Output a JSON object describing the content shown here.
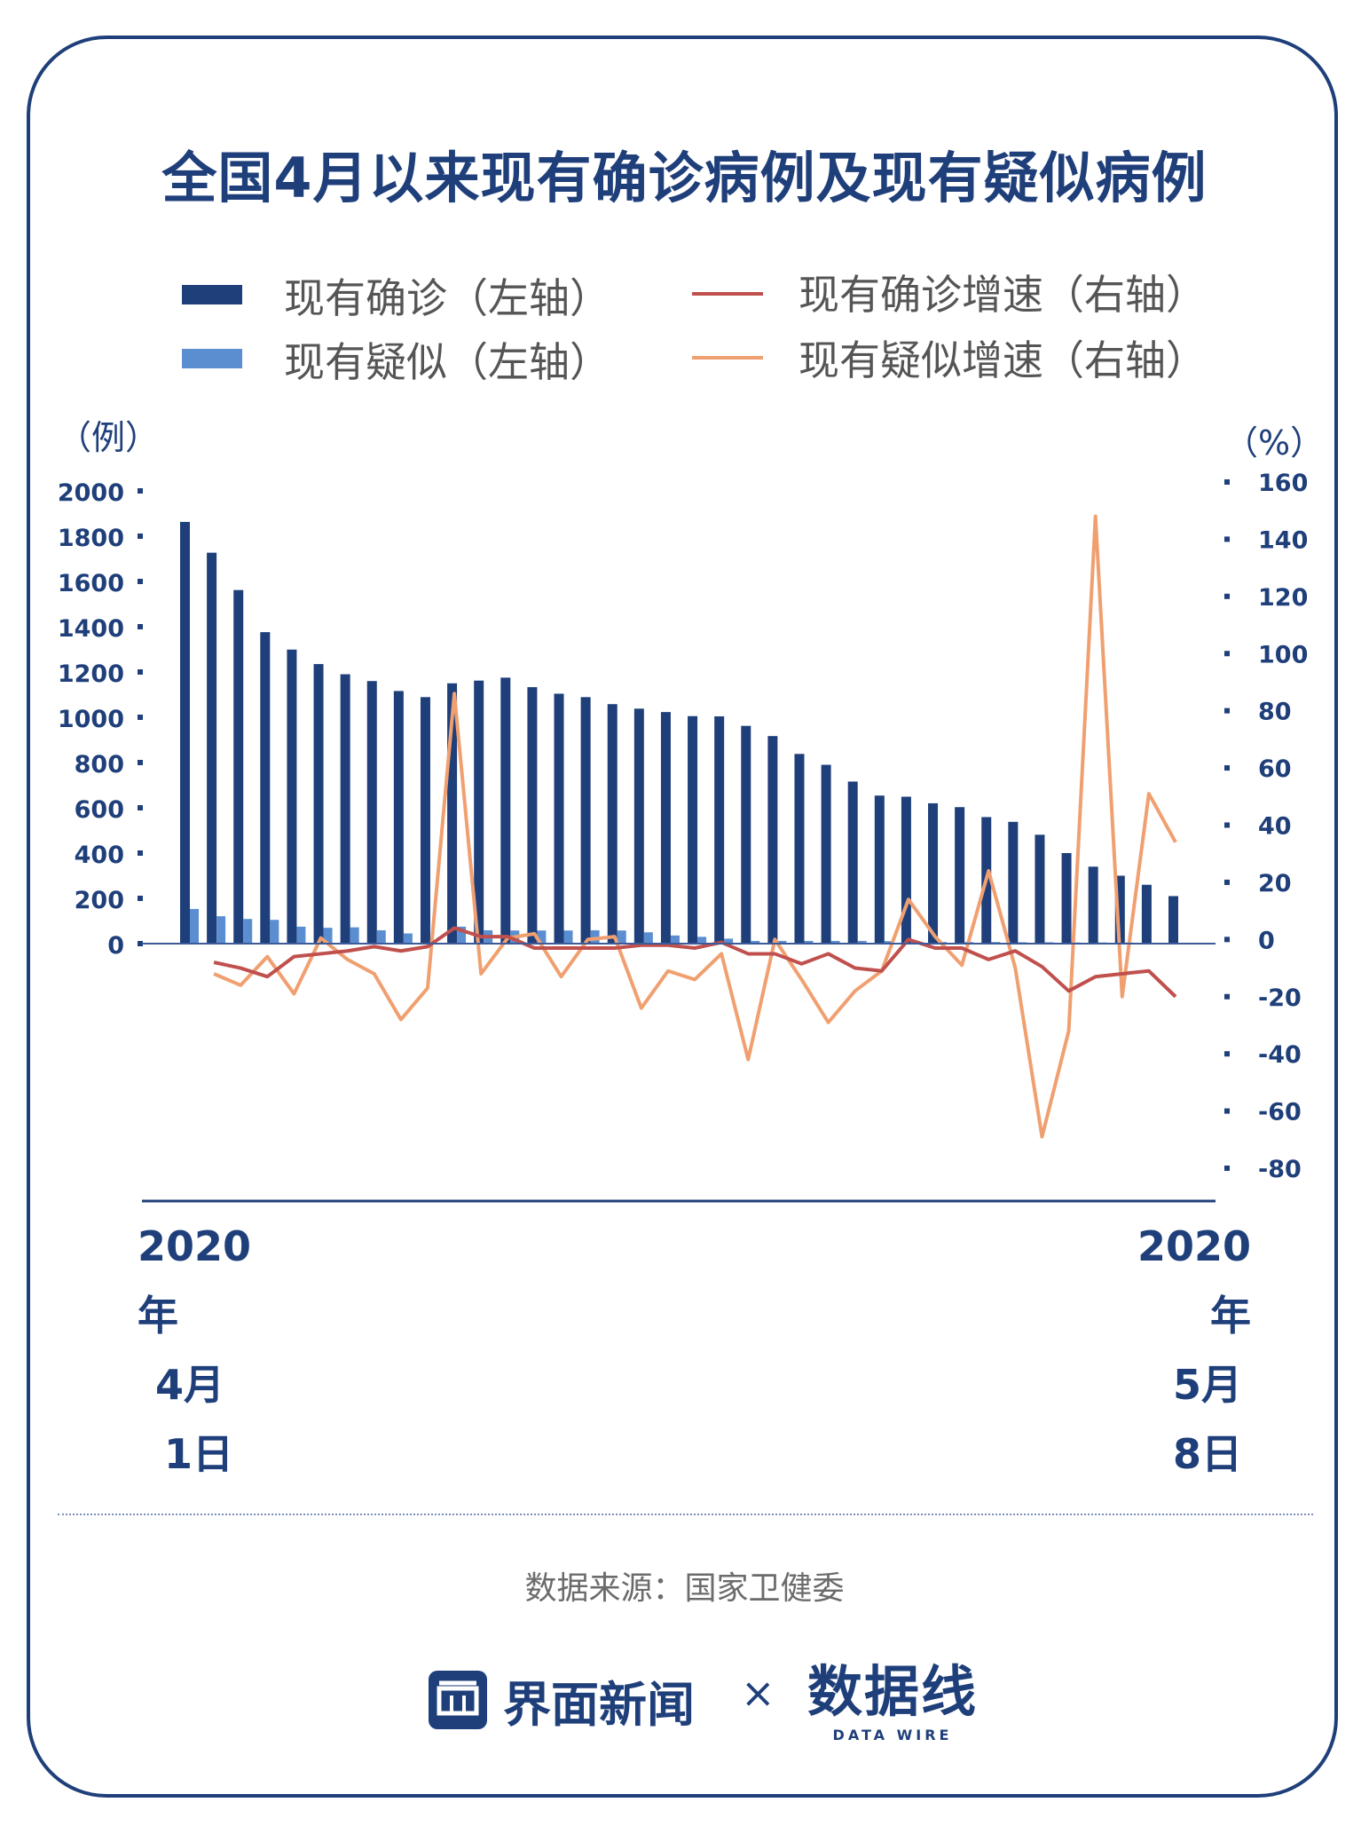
{
  "title": "全国4月以来现有确诊病例及现有疑似病例",
  "legend": {
    "confirmed": "现有确诊（左轴）",
    "suspected": "现有疑似（左轴）",
    "confirmed_rate": "现有确诊增速（右轴）",
    "suspected_rate": "现有疑似增速（右轴）"
  },
  "units": {
    "left": "（例）",
    "right": "（%）"
  },
  "dates": {
    "start_year": "2020年",
    "start_month": "4月",
    "start_day": "1日",
    "end_year": "2020年",
    "end_month": "5月",
    "end_day": "8日"
  },
  "source": "数据来源：国家卫健委",
  "brand": {
    "jiemian": "界面新闻",
    "times": "×",
    "datawire": "数据线",
    "datawire_en": "DATA WIRE"
  },
  "colors": {
    "confirmed": "#1f3f7a",
    "suspected": "#5b8ed0",
    "confirmed_rate": "#c0504d",
    "suspected_rate": "#f0a070"
  },
  "chart_data": {
    "type": "bar",
    "title": "全国4月以来现有确诊病例及现有疑似病例",
    "x_start": "2020年4月1日",
    "x_end": "2020年5月8日",
    "left_ylim": [
      0,
      2000
    ],
    "left_ticks": [
      0,
      200,
      400,
      600,
      800,
      1000,
      1200,
      1400,
      1600,
      1800,
      2000
    ],
    "right_ylim": [
      -80,
      160
    ],
    "right_ticks": [
      -80,
      -60,
      -40,
      -20,
      0,
      20,
      40,
      60,
      80,
      100,
      120,
      140,
      160
    ],
    "series": [
      {
        "name": "现有确诊（左轴）",
        "type": "bar",
        "axis": "left",
        "values": [
          1863,
          1727,
          1562,
          1376,
          1299,
          1235,
          1190,
          1160,
          1116,
          1089,
          1150,
          1162,
          1175,
          1133,
          1104,
          1089,
          1058,
          1038,
          1023,
          1005,
          1004,
          962,
          917,
          838,
          790,
          716,
          654,
          649,
          620,
          603,
          559,
          538,
          481,
          400,
          340,
          300,
          260,
          210
        ]
      },
      {
        "name": "现有疑似（左轴）",
        "type": "bar",
        "axis": "left",
        "values": [
          153,
          121,
          109,
          105,
          75,
          70,
          72,
          59,
          45,
          0,
          75,
          59,
          58,
          58,
          58,
          59,
          58,
          50,
          36,
          30,
          22,
          12,
          12,
          12,
          12,
          12,
          11,
          11,
          7,
          7,
          7,
          6,
          6,
          5,
          5,
          5,
          4,
          4
        ]
      },
      {
        "name": "现有确诊增速（右轴）",
        "type": "line",
        "axis": "right",
        "values": [
          null,
          -8,
          -10,
          -13,
          -6,
          -5,
          -4,
          -2.5,
          -4,
          -2.5,
          4,
          1,
          1,
          -3,
          -3,
          -3,
          -3,
          -2,
          -2,
          -3,
          -1,
          -5,
          -5,
          -8.5,
          -5,
          -10,
          -11,
          0,
          -3,
          -3,
          -7,
          -4,
          -9.5,
          -18,
          -13,
          -12,
          -11,
          -20
        ]
      },
      {
        "name": "现有疑似增速（右轴）",
        "type": "line",
        "axis": "right",
        "values": [
          null,
          -12,
          -16,
          -6,
          -19,
          0.5,
          -7,
          -12,
          -28,
          -17,
          86,
          -12,
          0.5,
          2,
          -13,
          0,
          1,
          -24,
          -11,
          -14,
          -5,
          -42,
          0,
          -14,
          -29,
          -18,
          -11,
          14,
          1,
          -9,
          24,
          -10,
          -69,
          -32,
          148,
          -20,
          51,
          34
        ]
      }
    ]
  }
}
